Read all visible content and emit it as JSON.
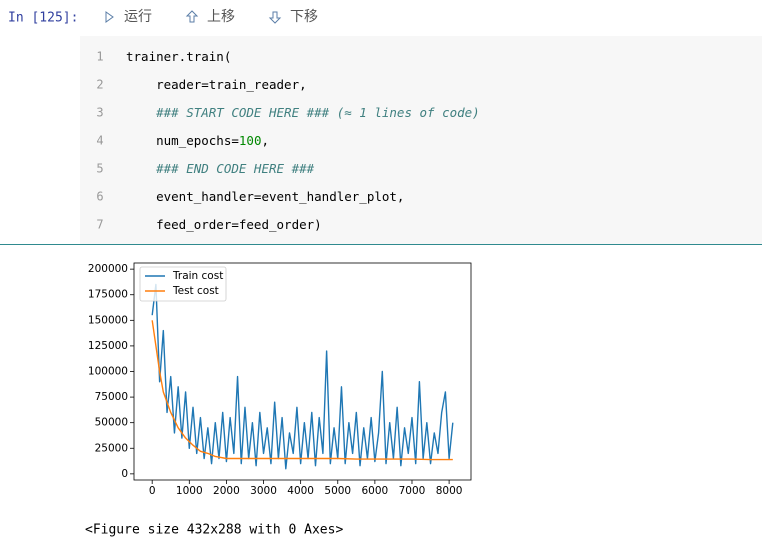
{
  "prompt": "In  [125]:",
  "toolbar": [
    "运行",
    "上移",
    "下移"
  ],
  "code_lines": [
    {
      "number": 1,
      "tokens": [
        {
          "text": "trainer.train(",
          "style": "plain"
        }
      ]
    },
    {
      "number": 2,
      "tokens": [
        {
          "text": "    reader=train_reader,",
          "style": "plain"
        }
      ]
    },
    {
      "number": 3,
      "tokens": [
        {
          "text": "    ### START CODE HERE ### (≈ 1 lines of code)",
          "style": "comment"
        }
      ]
    },
    {
      "number": 4,
      "tokens": [
        {
          "text": "    num_epochs=",
          "style": "plain"
        },
        {
          "text": "100",
          "style": "number"
        },
        {
          "text": ",",
          "style": "plain"
        }
      ]
    },
    {
      "number": 5,
      "tokens": [
        {
          "text": "    ### END CODE HERE ###",
          "style": "comment"
        }
      ]
    },
    {
      "number": 6,
      "tokens": [
        {
          "text": "    event_handler=event_handler_plot,",
          "style": "plain"
        }
      ]
    },
    {
      "number": 7,
      "tokens": [
        {
          "text": "    feed_order=feed_order)",
          "style": "plain"
        }
      ]
    }
  ],
  "chart_data": {
    "type": "line",
    "xlim": [
      -490,
      8590
    ],
    "ylim": [
      -6000,
      206000
    ],
    "xticks": [
      0,
      1000,
      2000,
      3000,
      4000,
      5000,
      6000,
      7000,
      8000
    ],
    "yticks": [
      0,
      25000,
      50000,
      75000,
      100000,
      125000,
      150000,
      175000,
      200000
    ],
    "legend": "upper left",
    "series": [
      {
        "name": "Train cost",
        "color": "#1f77b4",
        "x": [
          0,
          100,
          200,
          300,
          400,
          500,
          600,
          700,
          800,
          900,
          1000,
          1100,
          1200,
          1300,
          1400,
          1500,
          1600,
          1700,
          1800,
          1900,
          2000,
          2100,
          2200,
          2300,
          2400,
          2500,
          2600,
          2700,
          2800,
          2900,
          3000,
          3100,
          3200,
          3300,
          3400,
          3500,
          3600,
          3700,
          3800,
          3900,
          4000,
          4100,
          4200,
          4300,
          4400,
          4500,
          4600,
          4700,
          4800,
          4900,
          5000,
          5100,
          5200,
          5300,
          5400,
          5500,
          5600,
          5700,
          5800,
          5900,
          6000,
          6100,
          6200,
          6300,
          6400,
          6500,
          6600,
          6700,
          6800,
          6900,
          7000,
          7100,
          7200,
          7300,
          7400,
          7500,
          7600,
          7700,
          7800,
          7900,
          8000,
          8100
        ],
        "values": [
          155000,
          185000,
          90000,
          140000,
          60000,
          95000,
          40000,
          85000,
          35000,
          80000,
          25000,
          65000,
          20000,
          55000,
          15000,
          45000,
          10000,
          50000,
          15000,
          60000,
          12000,
          55000,
          20000,
          95000,
          10000,
          65000,
          15000,
          50000,
          8000,
          60000,
          20000,
          45000,
          10000,
          70000,
          15000,
          55000,
          5000,
          40000,
          20000,
          65000,
          10000,
          50000,
          15000,
          60000,
          8000,
          55000,
          20000,
          120000,
          10000,
          45000,
          15000,
          85000,
          10000,
          50000,
          20000,
          60000,
          8000,
          45000,
          15000,
          55000,
          12000,
          40000,
          100000,
          10000,
          50000,
          15000,
          65000,
          8000,
          45000,
          20000,
          55000,
          10000,
          90000,
          15000,
          50000,
          10000,
          40000,
          20000,
          60000,
          80000,
          15000,
          50000
        ]
      },
      {
        "name": "Test cost",
        "color": "#ff7f0e",
        "x": [
          0,
          100,
          200,
          300,
          500,
          700,
          900,
          1100,
          1300,
          1500,
          1700,
          2000,
          2500,
          3000,
          3500,
          4000,
          4500,
          5000,
          5500,
          6000,
          6500,
          7000,
          7500,
          8100
        ],
        "values": [
          150000,
          125000,
          100000,
          80000,
          60000,
          45000,
          35000,
          28000,
          22000,
          20000,
          17000,
          15000,
          15000,
          15000,
          15000,
          15000,
          15000,
          15000,
          14500,
          14500,
          14500,
          14500,
          14000,
          14000
        ]
      }
    ]
  },
  "output_text": "<Figure size 432x288 with 0 Axes>"
}
